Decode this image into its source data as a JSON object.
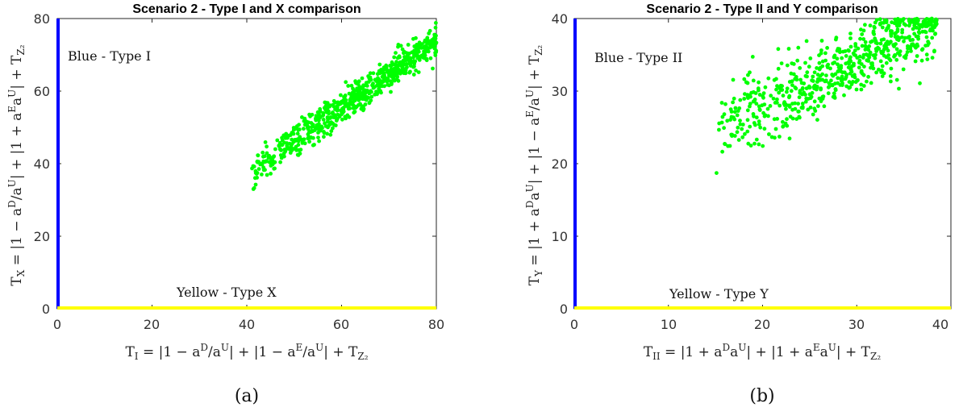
{
  "colors": {
    "blue": "#0000ff",
    "yellow": "#ffff00",
    "points": "#00ff00"
  },
  "chart_data": [
    {
      "type": "scatter",
      "title": "Scenario 2 - Type I and X comparison",
      "xlabel": "T_I = |1 − a^D/a^U| + |1 − a^E/a^U| + T_{Z_2}",
      "ylabel": "T_X = |1 − a^D/a^U| + |1 + a^E a^U| + T_{Z_2}",
      "xlim": [
        0,
        80
      ],
      "ylim": [
        0,
        80
      ],
      "xticks": [
        "0",
        "20",
        "40",
        "60",
        "80"
      ],
      "yticks": [
        "0",
        "20",
        "40",
        "60",
        "80"
      ],
      "annotations": [
        "Blue - Type I",
        "Yellow - Type X"
      ],
      "caption": "(a)",
      "grid": false,
      "series": [
        {
          "color": "#00ff00",
          "cloud": {
            "count": 700,
            "x_range": [
              41,
              80
            ],
            "y_at_xmin": 38,
            "y_at_xmax": 74,
            "spread": 2.2
          }
        },
        {
          "color": "#0000ff",
          "shape": "vertical line on y-axis",
          "x": 0,
          "y_range": [
            0,
            80
          ]
        },
        {
          "color": "#ffff00",
          "shape": "horizontal line on x-axis",
          "y": 0,
          "x_range": [
            0,
            80
          ]
        }
      ]
    },
    {
      "type": "scatter",
      "title": "Scenario 2 - Type II and Y comparison",
      "xlabel": "T_II = |1 + a^D a^U| + |1 + a^E a^U| + T_{Z_2}",
      "ylabel": "T_Y = |1 + a^D a^U| + |1 − a^E/a^U| + T_{Z_2}",
      "xlim": [
        0,
        40
      ],
      "ylim": [
        0,
        40
      ],
      "xticks": [
        "0",
        "10",
        "20",
        "30",
        "40"
      ],
      "yticks": [
        "0",
        "10",
        "20",
        "30",
        "40"
      ],
      "annotations": [
        "Blue - Type II",
        "Yellow - Type Y"
      ],
      "caption": "(b)",
      "grid": false,
      "series": [
        {
          "color": "#00ff00",
          "cloud": {
            "count": 650,
            "x_range": [
              15,
              38.5
            ],
            "y_at_xmin": 24,
            "y_at_xmax": 40,
            "spread": 2.6,
            "ymax": 40
          }
        },
        {
          "color": "#0000ff",
          "shape": "vertical line on y-axis",
          "x": 0,
          "y_range": [
            0,
            40
          ]
        },
        {
          "color": "#ffff00",
          "shape": "horizontal line on x-axis",
          "y": 0,
          "x_range": [
            0,
            40
          ]
        }
      ]
    }
  ]
}
